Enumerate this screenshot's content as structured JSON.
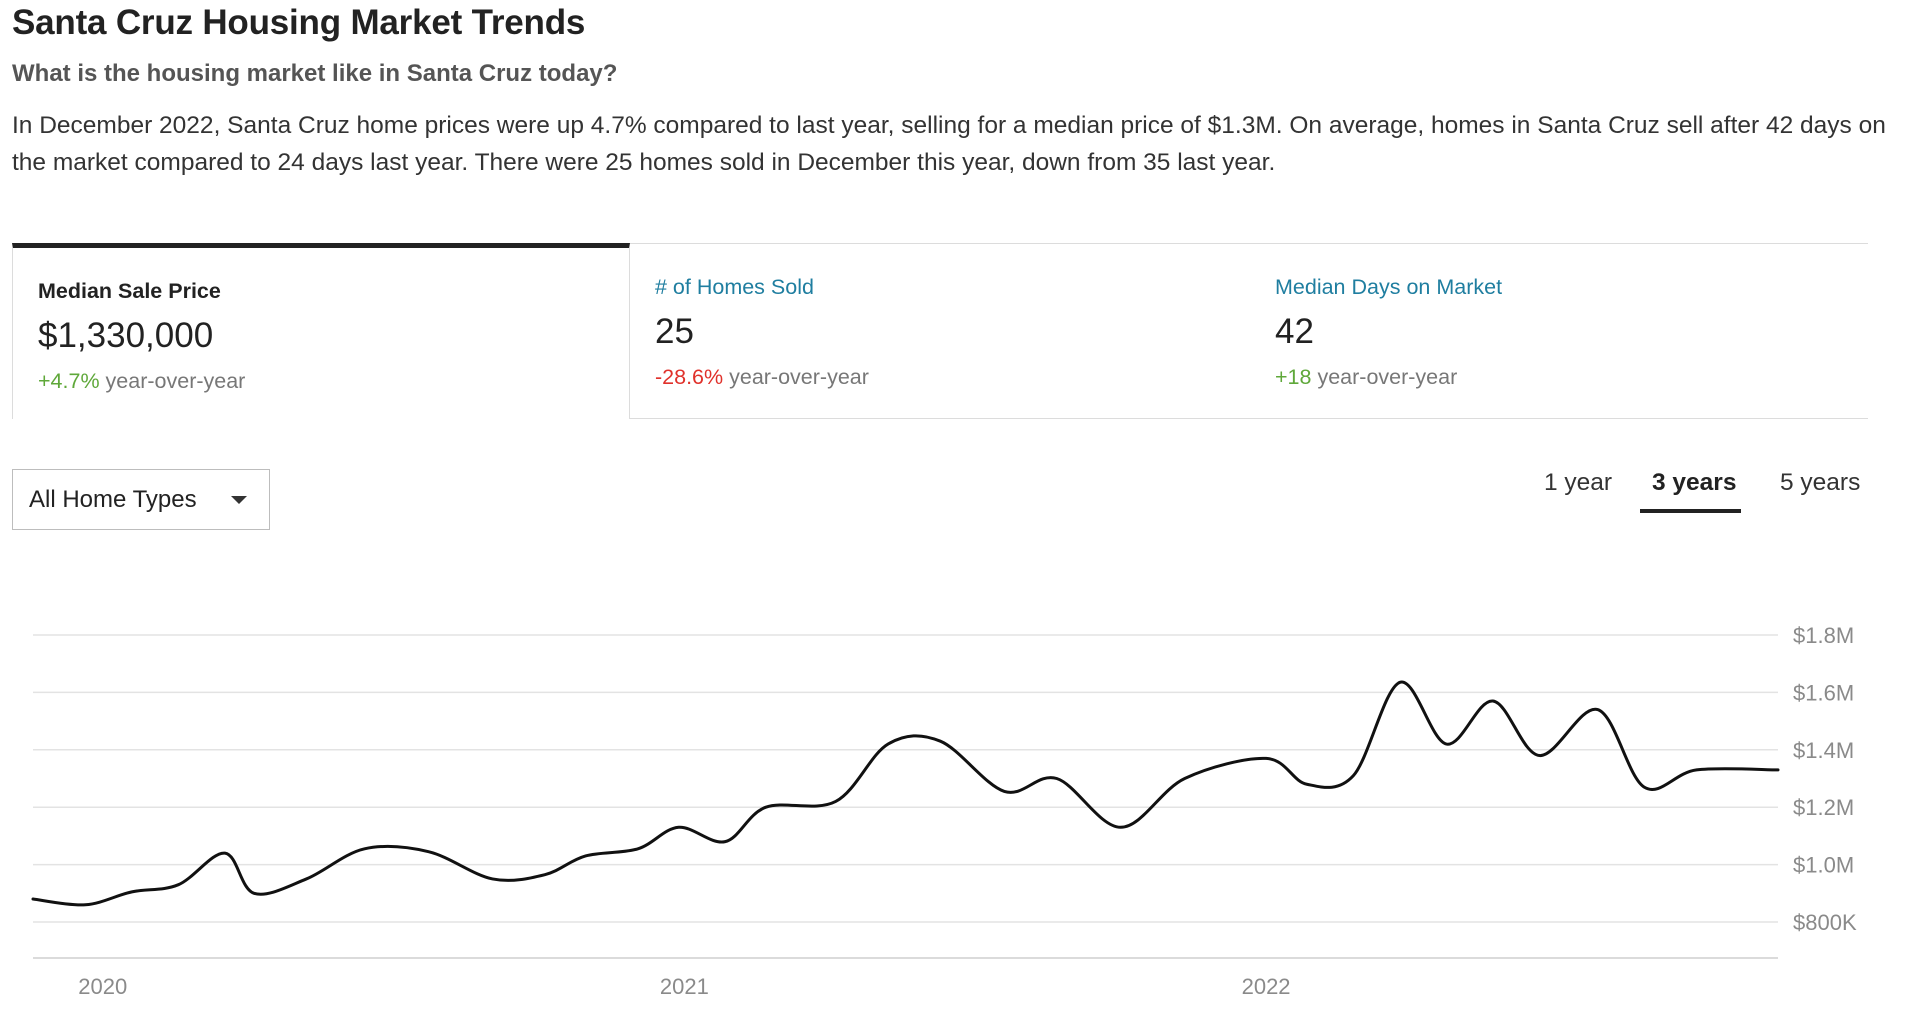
{
  "header": {
    "title": "Santa Cruz Housing Market Trends",
    "subtitle": "What is the housing market like in Santa Cruz today?",
    "summary": "In December 2022, Santa Cruz home prices were up 4.7% compared to last year, selling for a median price of $1.3M. On average, homes in Santa Cruz sell after 42 days on the market compared to 24 days last year. There were 25 homes sold in December this year, down from 35 last year."
  },
  "stats": [
    {
      "label": "Median Sale Price",
      "value": "$1,330,000",
      "change": "+4.7%",
      "change_suffix": "year-over-year",
      "change_direction": "up",
      "active": true
    },
    {
      "label": "# of Homes Sold",
      "value": "25",
      "change": "-28.6%",
      "change_suffix": "year-over-year",
      "change_direction": "down",
      "active": false
    },
    {
      "label": "Median Days on Market",
      "value": "42",
      "change": "+18",
      "change_suffix": "year-over-year",
      "change_direction": "up",
      "active": false
    }
  ],
  "filters": {
    "home_type": {
      "selected": "All Home Types"
    },
    "range_tabs": [
      {
        "label": "1 year",
        "selected": false
      },
      {
        "label": "3 years",
        "selected": true
      },
      {
        "label": "5 years",
        "selected": false
      }
    ]
  },
  "colors": {
    "accent_link": "#1f7ea0",
    "positive": "#5fa83a",
    "negative": "#e0312b",
    "line": "#111111",
    "grid": "#e3e3e3",
    "axis_text": "#8a8a8a"
  },
  "chart_data": {
    "type": "line",
    "title": "Median Sale Price",
    "xlabel": "",
    "ylabel": "",
    "x_tick_labels": [
      "2020",
      "2021",
      "2022"
    ],
    "x_tick_values": [
      2020.0,
      2021.0,
      2022.0
    ],
    "xlim": [
      2019.96,
      2022.96
    ],
    "y_tick_labels": [
      "$800K",
      "$1.0M",
      "$1.2M",
      "$1.4M",
      "$1.6M",
      "$1.8M"
    ],
    "y_tick_values": [
      800000,
      1000000,
      1200000,
      1400000,
      1600000,
      1800000
    ],
    "ylim": [
      680000,
      1800000
    ],
    "grid": true,
    "series": [
      {
        "name": "Median Sale Price",
        "x": [
          2019.96,
          2020.05,
          2020.13,
          2020.21,
          2020.29,
          2020.34,
          2020.43,
          2020.53,
          2020.64,
          2020.75,
          2020.84,
          2020.91,
          2021.0,
          2021.07,
          2021.15,
          2021.22,
          2021.34,
          2021.43,
          2021.52,
          2021.63,
          2021.72,
          2021.83,
          2021.94,
          2022.08,
          2022.15,
          2022.23,
          2022.31,
          2022.39,
          2022.47,
          2022.55,
          2022.65,
          2022.73,
          2022.82,
          2022.96
        ],
        "values": [
          880000,
          860000,
          905000,
          930000,
          1040000,
          900000,
          950000,
          1055000,
          1045000,
          950000,
          965000,
          1030000,
          1055000,
          1130000,
          1080000,
          1200000,
          1220000,
          1420000,
          1430000,
          1255000,
          1300000,
          1130000,
          1300000,
          1370000,
          1280000,
          1310000,
          1635000,
          1420000,
          1570000,
          1380000,
          1540000,
          1270000,
          1330000,
          1330000
        ]
      }
    ]
  }
}
